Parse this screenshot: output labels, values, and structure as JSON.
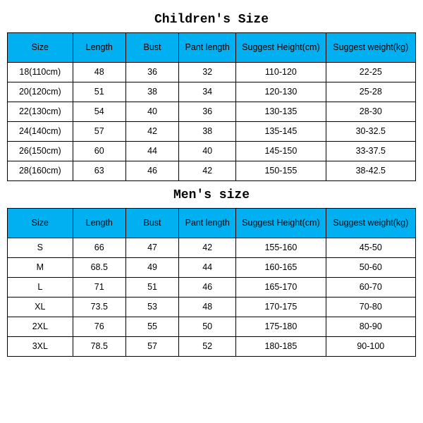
{
  "header_bg": "#00b0f0",
  "header_color": "#000000",
  "cell_bg": "#ffffff",
  "cell_color": "#000000",
  "border_color": "#000000",
  "title_font": "Courier New, monospace",
  "body_font": "Arial, sans-serif",
  "children_title": "Children's Size",
  "mens_title": "Men's size",
  "columns": [
    "Size",
    "Length",
    "Bust",
    "Pant length",
    "Suggest Height(cm)",
    "Suggest weight(kg)"
  ],
  "children_rows": [
    [
      "18(110cm)",
      "48",
      "36",
      "32",
      "110-120",
      "22-25"
    ],
    [
      "20(120cm)",
      "51",
      "38",
      "34",
      "120-130",
      "25-28"
    ],
    [
      "22(130cm)",
      "54",
      "40",
      "36",
      "130-135",
      "28-30"
    ],
    [
      "24(140cm)",
      "57",
      "42",
      "38",
      "135-145",
      "30-32.5"
    ],
    [
      "26(150cm)",
      "60",
      "44",
      "40",
      "145-150",
      "33-37.5"
    ],
    [
      "28(160cm)",
      "63",
      "46",
      "42",
      "150-155",
      "38-42.5"
    ]
  ],
  "mens_rows": [
    [
      "S",
      "66",
      "47",
      "42",
      "155-160",
      "45-50"
    ],
    [
      "M",
      "68.5",
      "49",
      "44",
      "160-165",
      "50-60"
    ],
    [
      "L",
      "71",
      "51",
      "46",
      "165-170",
      "60-70"
    ],
    [
      "XL",
      "73.5",
      "53",
      "48",
      "170-175",
      "70-80"
    ],
    [
      "2XL",
      "76",
      "55",
      "50",
      "175-180",
      "80-90"
    ],
    [
      "3XL",
      "78.5",
      "57",
      "52",
      "180-185",
      "90-100"
    ]
  ]
}
